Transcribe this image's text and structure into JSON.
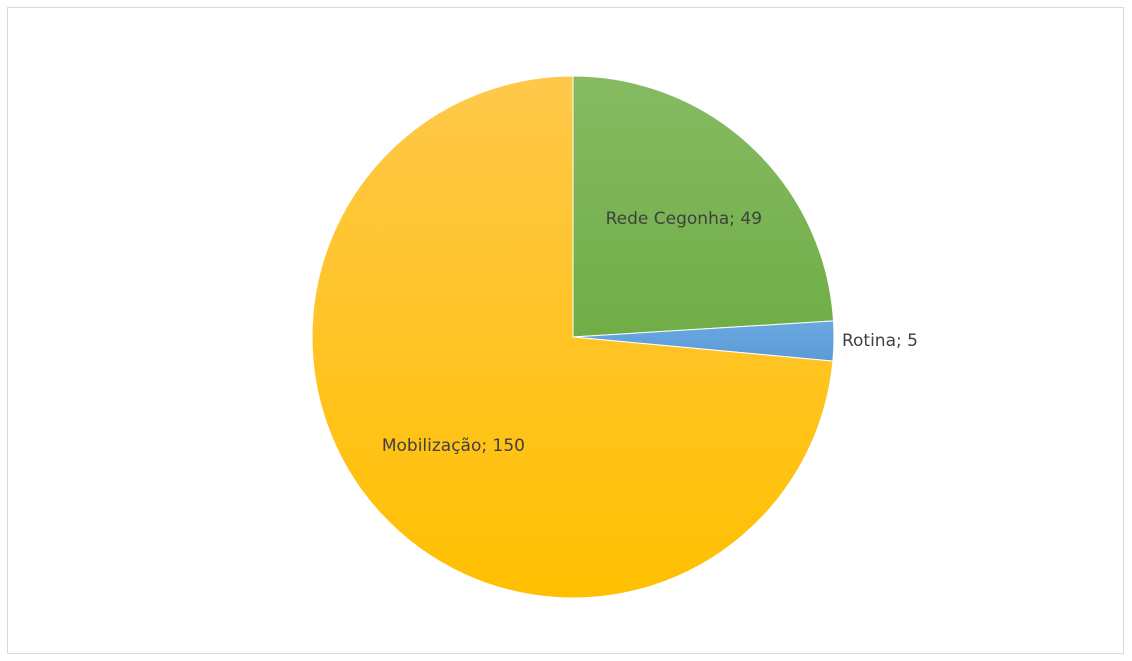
{
  "chart_data": {
    "type": "pie",
    "title": "",
    "start_angle_deg": 0,
    "direction": "clockwise",
    "slices": [
      {
        "name": "Rede Cegonha",
        "value": 49,
        "label": "Rede Cegonha; 49",
        "color": "#70ad47",
        "color_light": "#86bb62",
        "label_position": "inside"
      },
      {
        "name": "Rotina",
        "value": 5,
        "label": "Rotina; 5",
        "color": "#5b9bd5",
        "color_light": "#6aa8e0",
        "label_position": "outside"
      },
      {
        "name": "Mobilização",
        "value": 150,
        "label": "Mobilização; 150",
        "color": "#ffc000",
        "color_light": "#ffc84a",
        "label_position": "inside"
      }
    ],
    "legend": "none"
  }
}
